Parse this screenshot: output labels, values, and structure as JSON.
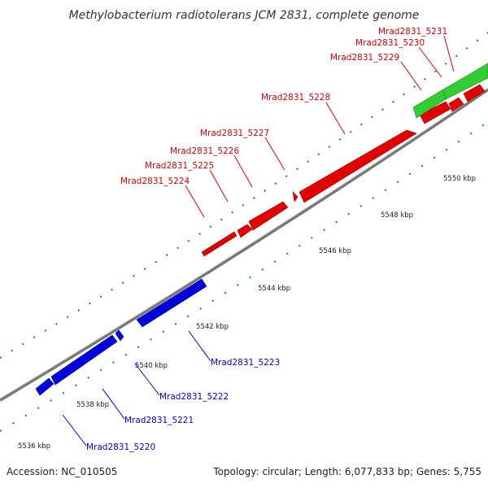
{
  "title": "Methylobacterium radiotolerans JCM 2831, complete genome",
  "accession": "Accession: NC_010505",
  "summary": "Topology: circular; Length: 6,077,833 bp; Genes: 5,755",
  "colors": {
    "forward_gene": "#ff0000",
    "reverse_gene": "#0000ff",
    "rna_gene": "#33cc33",
    "backbone": "#888888",
    "tick": "#2d7a2d"
  },
  "kbp_labels": [
    "5536 kbp",
    "5538 kbp",
    "5540 kbp",
    "5542 kbp",
    "5544 kbp",
    "5546 kbp",
    "5548 kbp",
    "5550 kbp"
  ],
  "forward_labels": [
    "Mrad2831_5224",
    "Mrad2831_5225",
    "Mrad2831_5226",
    "Mrad2831_5227",
    "Mrad2831_5228",
    "Mrad2831_5229",
    "Mrad2831_5230",
    "Mrad2831_5231"
  ],
  "reverse_labels": [
    "Mrad2831_5220",
    "Mrad2831_5221",
    "Mrad2831_5222",
    "Mrad2831_5223"
  ]
}
